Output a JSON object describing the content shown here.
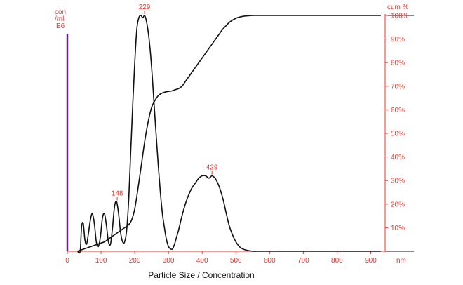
{
  "chart_data": {
    "type": "line",
    "xlabel": "Particle Size / Concentration",
    "x_unit": "nm",
    "left_axis_label": [
      "con",
      "/ml",
      "E6"
    ],
    "right_axis_label": "cum %",
    "xlim": [
      0,
      930
    ],
    "ylim_left": [
      0,
      100
    ],
    "ylim_right": [
      0,
      100
    ],
    "x_ticks": [
      0,
      100,
      200,
      300,
      400,
      500,
      600,
      700,
      800,
      900
    ],
    "right_ticks": [
      "10%",
      "20%",
      "30%",
      "40%",
      "50%",
      "60%",
      "70%",
      "80%",
      "90%",
      "100%"
    ],
    "right_tick_values": [
      10,
      20,
      30,
      40,
      50,
      60,
      70,
      80,
      90,
      100
    ],
    "series": [
      {
        "role": "concentration",
        "x": [
          30,
          38,
          42,
          47,
          52,
          57,
          62,
          68,
          74,
          80,
          86,
          92,
          98,
          104,
          110,
          116,
          122,
          128,
          134,
          140,
          146,
          152,
          158,
          164,
          170,
          176,
          182,
          188,
          194,
          200,
          206,
          212,
          218,
          224,
          229,
          234,
          240,
          246,
          252,
          258,
          264,
          270,
          276,
          282,
          288,
          294,
          300,
          306,
          312,
          318,
          324,
          330,
          340,
          350,
          360,
          370,
          380,
          390,
          400,
          410,
          420,
          429,
          438,
          446,
          454,
          462,
          470,
          480,
          490,
          500,
          510,
          520,
          530,
          540,
          550,
          560,
          570,
          600,
          700,
          800,
          900,
          930
        ],
        "values": [
          0,
          0,
          10,
          12,
          5,
          3,
          7,
          13,
          16,
          12,
          4,
          2,
          6,
          14,
          16,
          11,
          4,
          3,
          10,
          19,
          21,
          16,
          8,
          4,
          4,
          9,
          22,
          42,
          62,
          80,
          94,
          99,
          100,
          99,
          100,
          98,
          93,
          85,
          74,
          61,
          48,
          36,
          25,
          16,
          10,
          5,
          2,
          1,
          1,
          3,
          6,
          9,
          15,
          20,
          24,
          27,
          29,
          31,
          32,
          32,
          31,
          32,
          31,
          29,
          26,
          22,
          17,
          11,
          7,
          4,
          2,
          1,
          0.5,
          0.2,
          0,
          0,
          0,
          0,
          0,
          0,
          0,
          0
        ],
        "peak_labels": [
          {
            "x": 148,
            "label": "148"
          },
          {
            "x": 229,
            "label": "229"
          },
          {
            "x": 429,
            "label": "429"
          }
        ]
      },
      {
        "role": "cumulative",
        "x": [
          30,
          40,
          50,
          60,
          70,
          80,
          90,
          100,
          110,
          120,
          130,
          140,
          150,
          160,
          170,
          180,
          190,
          200,
          210,
          220,
          230,
          240,
          250,
          260,
          270,
          280,
          290,
          300,
          310,
          320,
          330,
          340,
          350,
          360,
          370,
          380,
          390,
          400,
          410,
          420,
          430,
          440,
          450,
          460,
          470,
          480,
          490,
          500,
          510,
          520,
          530,
          540,
          550,
          560,
          600,
          700,
          800,
          900,
          930
        ],
        "values": [
          0,
          0.5,
          1,
          1.5,
          2,
          2.5,
          3,
          3.5,
          4,
          5,
          6,
          7,
          8,
          9,
          10,
          11,
          13,
          18,
          27,
          37,
          47,
          55,
          61,
          64,
          66,
          67,
          67.5,
          67.8,
          68,
          68.5,
          69,
          70,
          72,
          74,
          76,
          78,
          80,
          82,
          84,
          86,
          88,
          90,
          92,
          94,
          95.5,
          97,
          98,
          98.8,
          99.3,
          99.6,
          99.8,
          99.9,
          100,
          100,
          100,
          100,
          100,
          100,
          100
        ]
      }
    ]
  },
  "colors": {
    "axis_red": "#e8382f",
    "left_axis_purple": "#6a1f86",
    "curve": "#111111"
  }
}
